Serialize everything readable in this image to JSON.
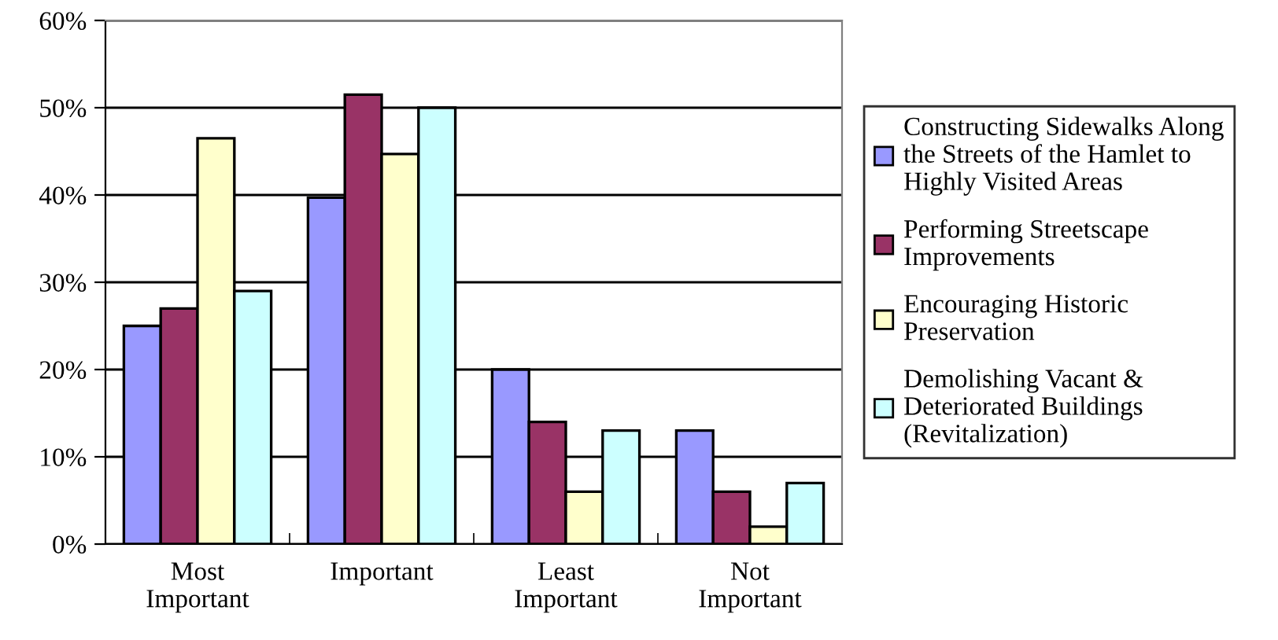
{
  "chart_data": {
    "type": "bar",
    "categories": [
      "Most\nImportant",
      "Important",
      "Least\nImportant",
      "Not\nImportant"
    ],
    "series": [
      {
        "name": "Constructing Sidewalks Along\nthe Streets of the Hamlet to\nHighly Visited Areas",
        "color": "#9999ff",
        "values": [
          25,
          39.7,
          20,
          13
        ]
      },
      {
        "name": "Performing Streetscape\nImprovements",
        "color": "#993366",
        "values": [
          27,
          51.5,
          14,
          6
        ]
      },
      {
        "name": "Encouraging Historic\nPreservation",
        "color": "#ffffcc",
        "values": [
          46.5,
          44.7,
          6,
          2
        ]
      },
      {
        "name": "Demolishing Vacant &\nDeteriorated Buildings\n(Revitalization)",
        "color": "#ccffff",
        "values": [
          29,
          50,
          13,
          7
        ]
      }
    ],
    "ylim": [
      0,
      60
    ],
    "yticks": [
      {
        "value": 0,
        "label": "0%"
      },
      {
        "value": 10,
        "label": "10%"
      },
      {
        "value": 20,
        "label": "20%"
      },
      {
        "value": 30,
        "label": "30%"
      },
      {
        "value": 40,
        "label": "40%"
      },
      {
        "value": 50,
        "label": "50%"
      },
      {
        "value": 60,
        "label": "60%"
      }
    ],
    "grid": "y",
    "legend": "right"
  }
}
